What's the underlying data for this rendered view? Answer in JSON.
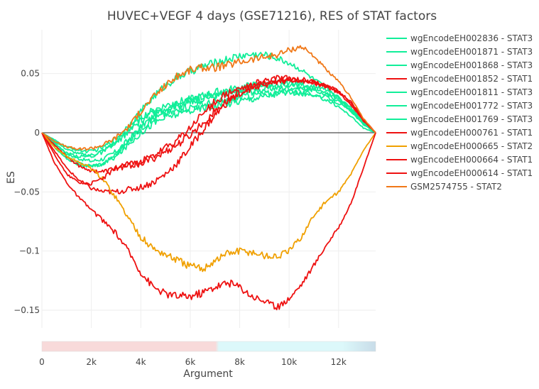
{
  "chart_data": {
    "type": "line",
    "title": "HUVEC+VEGF 4 days (GSE71216), RES of STAT factors",
    "xlabel": "Argument",
    "ylabel": "ES",
    "xlim": [
      0,
      13500
    ],
    "ylim": [
      -0.165,
      0.087
    ],
    "x_ticks": [
      0,
      2000,
      4000,
      6000,
      8000,
      10000,
      12000
    ],
    "x_tick_labels": [
      "0",
      "2k",
      "4k",
      "6k",
      "8k",
      "10k",
      "12k"
    ],
    "y_ticks": [
      -0.15,
      -0.1,
      -0.05,
      0,
      0.05
    ],
    "y_tick_labels": [
      "−0.15",
      "−0.1",
      "−0.05",
      "0",
      "0.05"
    ],
    "grid": true,
    "legend_position": "right",
    "colors": {
      "STAT1": "#ee1111",
      "STAT2": "#f0a000",
      "STAT3": "#11ee99",
      "GSM": "#f07818",
      "zero_line": "#222222"
    },
    "series": [
      {
        "name": "wgEncodeEH002836 - STAT3",
        "color": "#11ee99",
        "x": [
          0,
          500,
          1000,
          1500,
          2000,
          2500,
          3000,
          3500,
          4000,
          4500,
          5000,
          5500,
          6000,
          6500,
          7000,
          7500,
          8000,
          8500,
          9000,
          9500,
          10000,
          10500,
          11000,
          11500,
          12000,
          12500,
          13000,
          13500
        ],
        "y": [
          0,
          -0.008,
          -0.018,
          -0.022,
          -0.024,
          -0.022,
          -0.016,
          -0.006,
          0.005,
          0.014,
          0.02,
          0.024,
          0.026,
          0.029,
          0.031,
          0.032,
          0.034,
          0.035,
          0.037,
          0.038,
          0.038,
          0.038,
          0.036,
          0.032,
          0.027,
          0.018,
          0.008,
          0
        ]
      },
      {
        "name": "wgEncodeEH001871 - STAT3",
        "color": "#11ee99",
        "x": [
          0,
          500,
          1000,
          1500,
          2000,
          2500,
          3000,
          3500,
          4000,
          4500,
          5000,
          5500,
          6000,
          6500,
          7000,
          7500,
          8000,
          8500,
          9000,
          9500,
          10000,
          10500,
          11000,
          11500,
          12000,
          12500,
          13000,
          13500
        ],
        "y": [
          0,
          -0.006,
          -0.012,
          -0.015,
          -0.016,
          -0.012,
          -0.005,
          0.006,
          0.018,
          0.03,
          0.04,
          0.047,
          0.052,
          0.056,
          0.059,
          0.062,
          0.065,
          0.066,
          0.066,
          0.063,
          0.059,
          0.053,
          0.045,
          0.038,
          0.03,
          0.02,
          0.009,
          0
        ]
      },
      {
        "name": "wgEncodeEH001868 - STAT3",
        "color": "#11ee99",
        "x": [
          0,
          500,
          1000,
          1500,
          2000,
          2500,
          3000,
          3500,
          4000,
          4500,
          5000,
          5500,
          6000,
          6500,
          7000,
          7500,
          8000,
          8500,
          9000,
          9500,
          10000,
          10500,
          11000,
          11500,
          12000,
          12500,
          13000,
          13500
        ],
        "y": [
          0,
          -0.01,
          -0.02,
          -0.026,
          -0.028,
          -0.026,
          -0.018,
          -0.008,
          0.004,
          0.012,
          0.016,
          0.019,
          0.022,
          0.024,
          0.026,
          0.027,
          0.03,
          0.032,
          0.033,
          0.034,
          0.035,
          0.034,
          0.032,
          0.03,
          0.025,
          0.018,
          0.007,
          0
        ]
      },
      {
        "name": "wgEncodeEH001852 - STAT1",
        "color": "#ee1111",
        "x": [
          0,
          500,
          1000,
          1500,
          2000,
          2500,
          3000,
          3500,
          4000,
          4500,
          5000,
          5500,
          6000,
          6500,
          7000,
          7500,
          8000,
          8500,
          9000,
          9500,
          10000,
          10500,
          11000,
          11500,
          12000,
          12500,
          13000,
          13500
        ],
        "y": [
          0,
          -0.015,
          -0.03,
          -0.04,
          -0.047,
          -0.05,
          -0.05,
          -0.048,
          -0.046,
          -0.042,
          -0.035,
          -0.025,
          -0.012,
          0.002,
          0.015,
          0.026,
          0.034,
          0.04,
          0.044,
          0.046,
          0.046,
          0.045,
          0.043,
          0.04,
          0.035,
          0.026,
          0.012,
          0
        ]
      },
      {
        "name": "wgEncodeEH001811 - STAT3",
        "color": "#11ee99",
        "x": [
          0,
          500,
          1000,
          1500,
          2000,
          2500,
          3000,
          3500,
          4000,
          4500,
          5000,
          5500,
          6000,
          6500,
          7000,
          7500,
          8000,
          8500,
          9000,
          9500,
          10000,
          10500,
          11000,
          11500,
          12000,
          12500,
          13000,
          13500
        ],
        "y": [
          0,
          -0.012,
          -0.022,
          -0.027,
          -0.029,
          -0.026,
          -0.02,
          -0.01,
          0.0,
          0.008,
          0.013,
          0.016,
          0.019,
          0.021,
          0.023,
          0.025,
          0.027,
          0.029,
          0.031,
          0.033,
          0.034,
          0.033,
          0.031,
          0.028,
          0.022,
          0.014,
          0.004,
          0
        ]
      },
      {
        "name": "wgEncodeEH001772 - STAT3",
        "color": "#11ee99",
        "x": [
          0,
          500,
          1000,
          1500,
          2000,
          2500,
          3000,
          3500,
          4000,
          4500,
          5000,
          5500,
          6000,
          6500,
          7000,
          7500,
          8000,
          8500,
          9000,
          9500,
          10000,
          10500,
          11000,
          11500,
          12000,
          12500,
          13000,
          13500
        ],
        "y": [
          0,
          -0.009,
          -0.017,
          -0.02,
          -0.02,
          -0.016,
          -0.009,
          0.001,
          0.01,
          0.017,
          0.021,
          0.024,
          0.027,
          0.03,
          0.032,
          0.034,
          0.036,
          0.038,
          0.04,
          0.041,
          0.04,
          0.039,
          0.037,
          0.034,
          0.028,
          0.019,
          0.008,
          0
        ]
      },
      {
        "name": "wgEncodeEH001769 - STAT3",
        "color": "#11ee99",
        "x": [
          0,
          500,
          1000,
          1500,
          2000,
          2500,
          3000,
          3500,
          4000,
          4500,
          5000,
          5500,
          6000,
          6500,
          7000,
          7500,
          8000,
          8500,
          9000,
          9500,
          10000,
          10500,
          11000,
          11500,
          12000,
          12500,
          13000,
          13500
        ],
        "y": [
          0,
          -0.007,
          -0.014,
          -0.018,
          -0.019,
          -0.015,
          -0.008,
          0.002,
          0.013,
          0.019,
          0.023,
          0.026,
          0.028,
          0.031,
          0.034,
          0.036,
          0.038,
          0.04,
          0.041,
          0.042,
          0.042,
          0.041,
          0.039,
          0.036,
          0.03,
          0.021,
          0.009,
          0
        ]
      },
      {
        "name": "wgEncodeEH000761 - STAT1",
        "color": "#ee1111",
        "x": [
          0,
          500,
          1000,
          1500,
          2000,
          2500,
          3000,
          3500,
          4000,
          4500,
          5000,
          5500,
          6000,
          6500,
          7000,
          7500,
          8000,
          8500,
          9000,
          9500,
          10000,
          10500,
          11000,
          11500,
          12000,
          12500,
          13000,
          13500
        ],
        "y": [
          0,
          -0.01,
          -0.02,
          -0.028,
          -0.032,
          -0.033,
          -0.03,
          -0.028,
          -0.026,
          -0.022,
          -0.016,
          -0.01,
          -0.002,
          0.008,
          0.018,
          0.027,
          0.034,
          0.038,
          0.041,
          0.043,
          0.044,
          0.044,
          0.042,
          0.039,
          0.034,
          0.024,
          0.01,
          0
        ]
      },
      {
        "name": "wgEncodeEH000665 - STAT2",
        "color": "#f0a000",
        "x": [
          0,
          500,
          1000,
          1500,
          2000,
          2500,
          3000,
          3500,
          4000,
          4500,
          5000,
          5500,
          6000,
          6500,
          7000,
          7500,
          8000,
          8500,
          9000,
          9500,
          10000,
          10500,
          11000,
          11500,
          12000,
          12500,
          13000,
          13500
        ],
        "y": [
          0,
          -0.012,
          -0.02,
          -0.025,
          -0.03,
          -0.04,
          -0.055,
          -0.072,
          -0.088,
          -0.098,
          -0.103,
          -0.108,
          -0.113,
          -0.115,
          -0.108,
          -0.102,
          -0.1,
          -0.101,
          -0.104,
          -0.105,
          -0.1,
          -0.088,
          -0.07,
          -0.058,
          -0.05,
          -0.035,
          -0.015,
          0
        ]
      },
      {
        "name": "wgEncodeEH000664 - STAT1",
        "color": "#ee1111",
        "x": [
          0,
          500,
          1000,
          1500,
          2000,
          2500,
          3000,
          3500,
          4000,
          4500,
          5000,
          5500,
          6000,
          6500,
          7000,
          7500,
          8000,
          8500,
          9000,
          9500,
          10000,
          10500,
          11000,
          11500,
          12000,
          12500,
          13000,
          13500
        ],
        "y": [
          0,
          -0.025,
          -0.042,
          -0.055,
          -0.065,
          -0.075,
          -0.085,
          -0.1,
          -0.118,
          -0.13,
          -0.136,
          -0.138,
          -0.138,
          -0.135,
          -0.13,
          -0.127,
          -0.13,
          -0.138,
          -0.142,
          -0.148,
          -0.14,
          -0.128,
          -0.112,
          -0.095,
          -0.08,
          -0.06,
          -0.03,
          0
        ]
      },
      {
        "name": "wgEncodeEH000614 - STAT1",
        "color": "#ee1111",
        "x": [
          0,
          500,
          1000,
          1500,
          2000,
          2500,
          3000,
          3500,
          4000,
          4500,
          5000,
          5500,
          6000,
          6500,
          7000,
          7500,
          8000,
          8500,
          9000,
          9500,
          10000,
          10500,
          11000,
          11500,
          12000,
          12500,
          13000,
          13500
        ],
        "y": [
          0,
          -0.018,
          -0.035,
          -0.042,
          -0.043,
          -0.038,
          -0.03,
          -0.026,
          -0.024,
          -0.02,
          -0.013,
          -0.006,
          0.004,
          0.016,
          0.026,
          0.033,
          0.037,
          0.039,
          0.041,
          0.043,
          0.045,
          0.045,
          0.043,
          0.04,
          0.035,
          0.025,
          0.011,
          0
        ]
      },
      {
        "name": "GSM2574755 - STAT2",
        "color": "#f07818",
        "x": [
          0,
          500,
          1000,
          1500,
          2000,
          2500,
          3000,
          3500,
          4000,
          4500,
          5000,
          5500,
          6000,
          6500,
          7000,
          7500,
          8000,
          8500,
          9000,
          9500,
          10000,
          10500,
          11000,
          11500,
          12000,
          12500,
          13000,
          13500
        ],
        "y": [
          0,
          -0.007,
          -0.012,
          -0.014,
          -0.013,
          -0.01,
          -0.004,
          0.005,
          0.018,
          0.03,
          0.04,
          0.048,
          0.053,
          0.055,
          0.055,
          0.057,
          0.06,
          0.062,
          0.064,
          0.066,
          0.07,
          0.073,
          0.065,
          0.053,
          0.043,
          0.03,
          0.012,
          0
        ]
      }
    ],
    "range_slider": {
      "colors": [
        "#f8dada",
        "#dcf8fa",
        "#c8dce8"
      ]
    }
  }
}
